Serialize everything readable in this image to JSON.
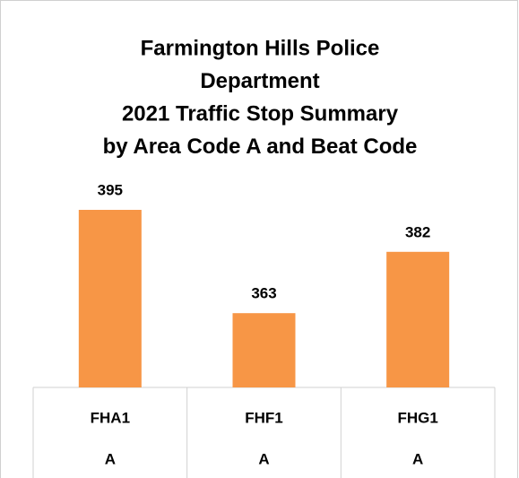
{
  "chart_data": {
    "type": "bar",
    "title": [
      "Farmington Hills Police",
      "Department",
      "2021 Traffic Stop Summary",
      "by Area Code A and Beat Code"
    ],
    "categories": [
      "FHA1",
      "FHF1",
      "FHG1"
    ],
    "category_groups": [
      "A",
      "A",
      "A"
    ],
    "values": [
      395,
      363,
      382
    ],
    "color": "#f79646",
    "ylim": [
      340,
      400
    ]
  }
}
